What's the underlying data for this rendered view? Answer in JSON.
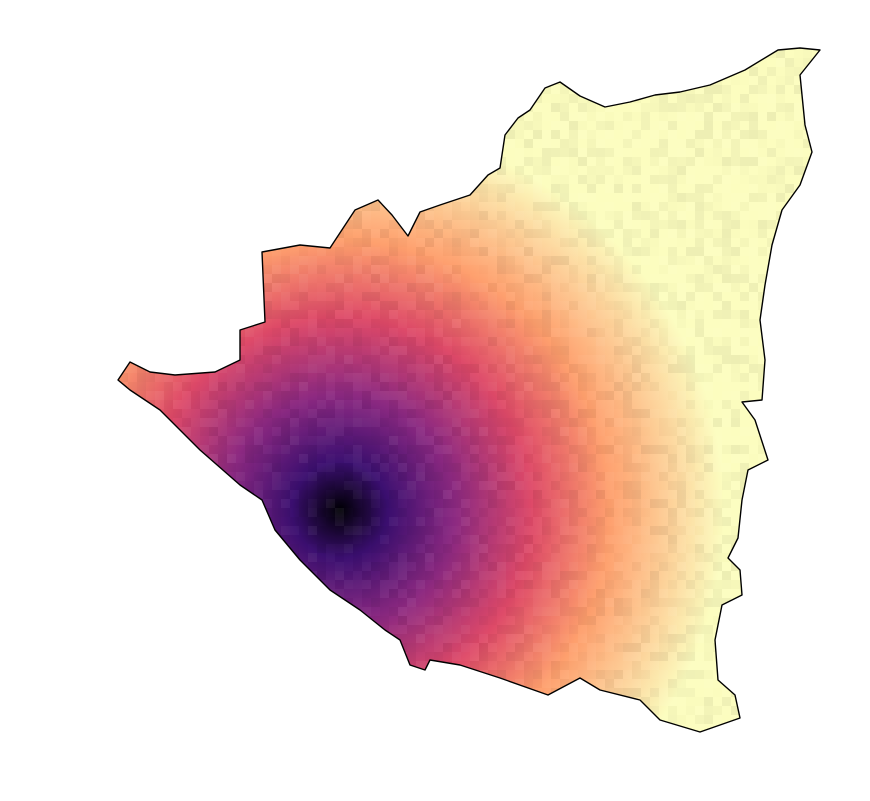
{
  "map": {
    "type": "choropleth-raster",
    "colormap": "magma",
    "colors": {
      "darkest": "#000004",
      "dark_purple": "#3b0f70",
      "purple": "#8c2981",
      "magenta": "#de4968",
      "orange": "#fe9f6d",
      "light": "#fcfdbf",
      "outline": "#000000",
      "background": "#ffffff"
    },
    "hotspot_label": "",
    "legend": null
  }
}
